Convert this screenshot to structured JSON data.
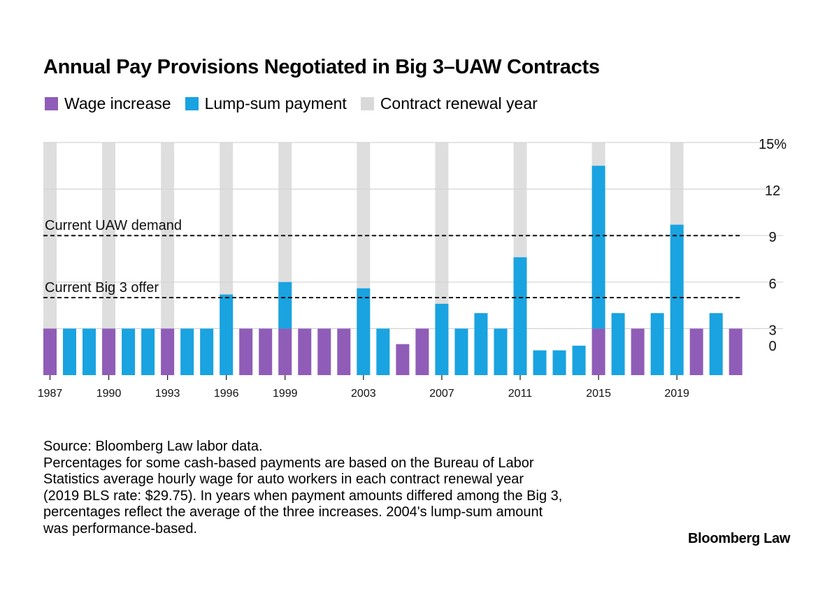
{
  "title": "Annual Pay Provisions Negotiated in Big 3–UAW Contracts",
  "legend": [
    {
      "label": "Wage increase",
      "color": "#8f5db8"
    },
    {
      "label": "Lump-sum payment",
      "color": "#19a3e0"
    },
    {
      "label": "Contract renewal year",
      "color": "#d9d9d9"
    }
  ],
  "chart_data": {
    "type": "bar",
    "categories": [
      1987,
      1988,
      1989,
      1990,
      1991,
      1992,
      1993,
      1994,
      1995,
      1996,
      1997,
      1998,
      1999,
      2000,
      2001,
      2002,
      2003,
      2004,
      2005,
      2006,
      2007,
      2008,
      2009,
      2010,
      2011,
      2012,
      2013,
      2014,
      2015,
      2016,
      2017,
      2018,
      2019,
      2020,
      2021,
      2022
    ],
    "x_tick_labels": [
      "1987",
      "1990",
      "1993",
      "1996",
      "1999",
      "2003",
      "2007",
      "2011",
      "2015",
      "2019"
    ],
    "x_tick_years": [
      1987,
      1990,
      1993,
      1996,
      1999,
      2003,
      2007,
      2011,
      2015,
      2019
    ],
    "series": [
      {
        "name": "Wage increase",
        "color": "#8f5db8",
        "values": [
          3,
          0,
          0,
          3,
          0,
          0,
          3,
          0,
          0,
          0,
          3,
          3,
          3,
          3,
          3,
          3,
          0,
          0,
          2,
          3,
          0,
          0,
          0,
          0,
          0,
          0,
          0,
          0,
          3,
          0,
          3,
          0,
          0,
          3,
          0,
          3
        ]
      },
      {
        "name": "Lump-sum payment",
        "color": "#19a3e0",
        "values": [
          0,
          3,
          3,
          0,
          3,
          3,
          0,
          3,
          3,
          5.2,
          0,
          0,
          3,
          0,
          0,
          0,
          5.6,
          3,
          0,
          0,
          4.6,
          3,
          4,
          3,
          7.6,
          1.6,
          1.6,
          1.9,
          10.5,
          4,
          0,
          4,
          9.7,
          0,
          4,
          0
        ]
      }
    ],
    "contract_renewal_years": [
      1987,
      1990,
      1993,
      1996,
      1999,
      2003,
      2007,
      2011,
      2015,
      2019
    ],
    "reference_lines": [
      {
        "label": "Current UAW demand",
        "value": 9
      },
      {
        "label": "Current Big 3 offer",
        "value": 5
      }
    ],
    "y_ticks": [
      {
        "value": 0,
        "label": "0"
      },
      {
        "value": 3,
        "label": "3"
      },
      {
        "value": 6,
        "label": "6"
      },
      {
        "value": 9,
        "label": "9"
      },
      {
        "value": 12,
        "label": "12"
      },
      {
        "value": 15,
        "label": "15%"
      }
    ],
    "ylim": [
      0,
      15
    ],
    "grid": true,
    "legend_position": "top-left"
  },
  "notes": [
    "Source: Bloomberg Law labor data.",
    "Percentages for some cash-based payments are based on the Bureau of Labor",
    "Statistics average hourly wage for auto workers in each contract renewal year",
    "(2019 BLS rate: $29.75). In years when payment amounts differed among the Big 3,",
    "percentages reflect the average of the three increases. 2004's lump-sum amount",
    "was performance-based."
  ],
  "brand": "Bloomberg Law"
}
